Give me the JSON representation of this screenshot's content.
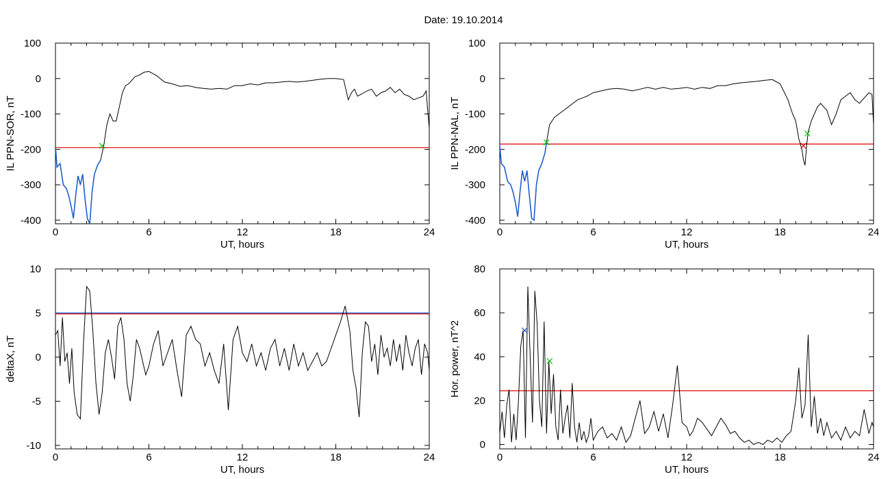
{
  "figure": {
    "title": "Date:  19.10.2014",
    "colors": {
      "trace": "#000000",
      "quiet": "#1f5fd0",
      "threshold": "#e00000",
      "onset_green": "#00c000",
      "onset_red": "#e00000",
      "mark_blue": "#2050b0"
    }
  },
  "chart_data": [
    {
      "id": "il-ppn-sor",
      "type": "line",
      "title": "",
      "xlabel": "UT, hours",
      "ylabel": "IL PPN-SOR, nT",
      "xlim": [
        0,
        24
      ],
      "ylim": [
        -410,
        100
      ],
      "xticks": [
        "0",
        "6",
        "12",
        "18",
        "24"
      ],
      "yticks": [
        "100",
        "0",
        "-100",
        "-200",
        "-300",
        "-400"
      ],
      "ytick_values": [
        100,
        0,
        -100,
        -200,
        -300,
        -400
      ],
      "threshold": -195,
      "series": [
        {
          "x": [
            0,
            0.1,
            0.3,
            0.5,
            0.7,
            0.85,
            1.0,
            1.15,
            1.3,
            1.45,
            1.6,
            1.75,
            1.9,
            2.05,
            2.2,
            2.35,
            2.5,
            2.7,
            2.9,
            3.1,
            3.3,
            3.5,
            3.7,
            3.9,
            4.1,
            4.3,
            4.5,
            4.7,
            4.9,
            5.1,
            5.4,
            5.7,
            6.0,
            6.5,
            7.0,
            7.5,
            8.0,
            8.5,
            9.0,
            9.5,
            10.0,
            10.5,
            11.0,
            11.5,
            12.0,
            12.5,
            13.0,
            13.5,
            14.0,
            14.5,
            15.0,
            15.5,
            16.0,
            16.5,
            17.0,
            17.5,
            18.0,
            18.5,
            18.8,
            19.0,
            19.2,
            19.4,
            19.6,
            19.8,
            20.0,
            20.3,
            20.6,
            20.9,
            21.2,
            21.5,
            21.8,
            22.1,
            22.4,
            22.7,
            23.0,
            23.3,
            23.6,
            23.8,
            23.9,
            24.0
          ],
          "y": [
            -190,
            -250,
            -240,
            -300,
            -310,
            -330,
            -360,
            -395,
            -330,
            -275,
            -300,
            -270,
            -340,
            -395,
            -410,
            -320,
            -270,
            -245,
            -230,
            -190,
            -130,
            -100,
            -120,
            -120,
            -80,
            -40,
            -20,
            -15,
            -5,
            5,
            10,
            18,
            20,
            8,
            -10,
            -15,
            -22,
            -20,
            -25,
            -28,
            -30,
            -28,
            -30,
            -20,
            -20,
            -15,
            -18,
            -12,
            -12,
            -10,
            -8,
            -10,
            -8,
            -5,
            -2,
            0,
            0,
            -3,
            -60,
            -40,
            -30,
            -50,
            -45,
            -40,
            -35,
            -30,
            -50,
            -40,
            -35,
            -25,
            -40,
            -30,
            -45,
            -50,
            -60,
            -55,
            -50,
            -35,
            -90,
            -140
          ]
        }
      ],
      "quiet_segment_until_x": 3.0,
      "markers": [
        {
          "x": 3.0,
          "y": -190,
          "color": "onset_green"
        }
      ]
    },
    {
      "id": "il-ppn-nal",
      "type": "line",
      "title": "",
      "xlabel": "UT, hours",
      "ylabel": "IL PPN-NAL, nT",
      "xlim": [
        0,
        24
      ],
      "ylim": [
        -410,
        100
      ],
      "xticks": [
        "0",
        "6",
        "12",
        "18",
        "24"
      ],
      "yticks": [
        "100",
        "0",
        "-100",
        "-200",
        "-300",
        "-400"
      ],
      "ytick_values": [
        100,
        0,
        -100,
        -200,
        -300,
        -400
      ],
      "threshold": -185,
      "series": [
        {
          "x": [
            0,
            0.1,
            0.3,
            0.5,
            0.7,
            0.85,
            1.0,
            1.15,
            1.3,
            1.45,
            1.6,
            1.75,
            1.9,
            2.05,
            2.2,
            2.35,
            2.5,
            2.7,
            2.9,
            3.0,
            3.2,
            3.5,
            3.8,
            4.1,
            4.4,
            4.7,
            5.0,
            5.3,
            5.6,
            6.0,
            6.5,
            7.0,
            7.5,
            8.0,
            8.5,
            9.0,
            9.5,
            10.0,
            10.5,
            11.0,
            11.5,
            12.0,
            12.5,
            13.0,
            13.5,
            14.0,
            14.5,
            15.0,
            15.5,
            16.0,
            16.5,
            17.0,
            17.5,
            18.0,
            18.5,
            18.8,
            19.0,
            19.2,
            19.4,
            19.5,
            19.6,
            19.7,
            19.8,
            20.0,
            20.2,
            20.4,
            20.6,
            20.8,
            21.0,
            21.3,
            21.6,
            21.9,
            22.2,
            22.5,
            22.8,
            23.1,
            23.4,
            23.7,
            23.9,
            24.0
          ],
          "y": [
            -190,
            -240,
            -250,
            -290,
            -300,
            -320,
            -350,
            -390,
            -320,
            -260,
            -290,
            -260,
            -330,
            -395,
            -400,
            -300,
            -260,
            -240,
            -210,
            -180,
            -130,
            -110,
            -100,
            -90,
            -80,
            -70,
            -60,
            -55,
            -50,
            -40,
            -35,
            -30,
            -28,
            -30,
            -35,
            -30,
            -25,
            -30,
            -25,
            -30,
            -28,
            -25,
            -30,
            -25,
            -28,
            -20,
            -20,
            -15,
            -12,
            -10,
            -8,
            -5,
            -3,
            -15,
            -60,
            -100,
            -120,
            -170,
            -200,
            -230,
            -245,
            -190,
            -150,
            -120,
            -100,
            -80,
            -70,
            -80,
            -90,
            -130,
            -100,
            -60,
            -50,
            -40,
            -60,
            -70,
            -55,
            -40,
            -45,
            -130
          ]
        }
      ],
      "quiet_segment_until_x": 3.0,
      "markers": [
        {
          "x": 3.0,
          "y": -180,
          "color": "onset_green"
        },
        {
          "x": 19.75,
          "y": -155,
          "color": "onset_green"
        },
        {
          "x": 19.5,
          "y": -190,
          "color": "onset_red"
        }
      ]
    },
    {
      "id": "deltax",
      "type": "line",
      "title": "",
      "xlabel": "UT, hours",
      "ylabel": "deltaX, nT",
      "xlim": [
        0,
        24
      ],
      "ylim": [
        -10.4,
        10
      ],
      "xticks": [
        "0",
        "6",
        "12",
        "18",
        "24"
      ],
      "yticks": [
        "10",
        "5",
        "0",
        "-5",
        "-10"
      ],
      "ytick_values": [
        10,
        5,
        0,
        -5,
        -10
      ],
      "threshold": 4.9,
      "threshold2": 5.0,
      "series": [
        {
          "x": [
            0,
            0.15,
            0.3,
            0.45,
            0.6,
            0.75,
            0.9,
            1.05,
            1.2,
            1.4,
            1.6,
            1.8,
            2.0,
            2.2,
            2.4,
            2.6,
            2.8,
            3.0,
            3.2,
            3.4,
            3.6,
            3.8,
            4.0,
            4.2,
            4.4,
            4.6,
            4.8,
            5.0,
            5.2,
            5.4,
            5.6,
            5.8,
            6.0,
            6.3,
            6.6,
            6.9,
            7.2,
            7.5,
            7.8,
            8.1,
            8.4,
            8.7,
            9.0,
            9.3,
            9.6,
            9.9,
            10.2,
            10.5,
            10.8,
            11.1,
            11.4,
            11.7,
            12.0,
            12.3,
            12.6,
            12.9,
            13.2,
            13.5,
            13.8,
            14.1,
            14.4,
            14.7,
            15.0,
            15.3,
            15.6,
            15.9,
            16.2,
            16.5,
            16.8,
            17.1,
            17.4,
            17.7,
            18.0,
            18.3,
            18.6,
            18.9,
            19.1,
            19.3,
            19.5,
            19.7,
            19.9,
            20.1,
            20.3,
            20.5,
            20.7,
            20.9,
            21.1,
            21.3,
            21.5,
            21.7,
            21.9,
            22.1,
            22.3,
            22.5,
            22.7,
            22.9,
            23.1,
            23.3,
            23.5,
            23.7,
            23.9,
            24.0
          ],
          "y": [
            2.5,
            3.0,
            -1.0,
            4.5,
            -0.5,
            0.5,
            -3.0,
            1.0,
            -4.0,
            -6.5,
            -7.0,
            1.5,
            8.0,
            7.5,
            3.0,
            -3.0,
            -6.5,
            -4.0,
            0.5,
            2.0,
            0.0,
            -2.5,
            3.5,
            4.5,
            2.0,
            -3.0,
            -5.0,
            -2.0,
            2.0,
            1.0,
            -0.5,
            -2.0,
            -1.0,
            1.5,
            3.0,
            -1.0,
            0.5,
            2.0,
            -1.5,
            -4.5,
            2.5,
            3.5,
            2.0,
            1.5,
            -1.0,
            0.5,
            -1.5,
            -3.0,
            1.5,
            -6.0,
            2.0,
            3.5,
            0.5,
            -0.5,
            1.5,
            -1.0,
            0.5,
            -1.5,
            1.0,
            2.0,
            -1.0,
            1.0,
            -1.5,
            1.5,
            -1.0,
            0.5,
            -1.5,
            -0.5,
            0.5,
            -1.0,
            -0.5,
            1.0,
            2.5,
            4.0,
            5.8,
            3.0,
            -1.5,
            -3.5,
            -6.8,
            0.5,
            4.0,
            3.5,
            -0.5,
            1.5,
            -2.0,
            2.5,
            0.0,
            1.0,
            -1.0,
            2.0,
            -0.5,
            1.5,
            -1.5,
            2.5,
            0.5,
            -1.0,
            1.0,
            2.0,
            -2.0,
            1.5,
            0.5,
            -1.5
          ]
        }
      ]
    },
    {
      "id": "hor-power",
      "type": "line",
      "title": "",
      "xlabel": "UT, hours",
      "ylabel": "Hor. power, nT^2",
      "xlim": [
        0,
        24
      ],
      "ylim": [
        -2,
        80
      ],
      "xticks": [
        "0",
        "6",
        "12",
        "18",
        "24"
      ],
      "yticks": [
        "80",
        "60",
        "40",
        "20",
        "0"
      ],
      "ytick_values": [
        80,
        60,
        40,
        20,
        0
      ],
      "threshold": 24.5,
      "series": [
        {
          "x": [
            0,
            0.15,
            0.3,
            0.45,
            0.6,
            0.75,
            0.9,
            1.05,
            1.2,
            1.35,
            1.5,
            1.65,
            1.8,
            1.95,
            2.1,
            2.25,
            2.4,
            2.55,
            2.7,
            2.85,
            3.0,
            3.15,
            3.3,
            3.45,
            3.6,
            3.75,
            3.9,
            4.05,
            4.2,
            4.35,
            4.5,
            4.65,
            4.8,
            4.95,
            5.1,
            5.25,
            5.4,
            5.55,
            5.7,
            5.85,
            6.0,
            6.3,
            6.6,
            6.9,
            7.2,
            7.5,
            7.8,
            8.1,
            8.4,
            8.7,
            9.0,
            9.3,
            9.6,
            9.9,
            10.2,
            10.5,
            10.8,
            11.1,
            11.4,
            11.7,
            12.0,
            12.2,
            12.4,
            12.7,
            13.0,
            13.3,
            13.6,
            13.9,
            14.2,
            14.5,
            14.8,
            15.1,
            15.4,
            15.7,
            16.0,
            16.3,
            16.6,
            16.9,
            17.2,
            17.5,
            17.8,
            18.1,
            18.4,
            18.7,
            19.0,
            19.2,
            19.4,
            19.6,
            19.8,
            20.0,
            20.2,
            20.4,
            20.6,
            20.8,
            21.0,
            21.3,
            21.6,
            21.9,
            22.2,
            22.5,
            22.8,
            23.1,
            23.4,
            23.7,
            23.9,
            24.0
          ],
          "y": [
            5,
            15,
            3,
            18,
            25,
            1,
            14,
            2,
            20,
            45,
            52,
            3,
            72,
            40,
            10,
            70,
            55,
            20,
            8,
            56,
            5,
            38,
            14,
            32,
            8,
            2,
            25,
            5,
            12,
            18,
            3,
            28,
            8,
            1,
            10,
            2,
            6,
            1,
            4,
            12,
            2,
            6,
            8,
            3,
            5,
            2,
            8,
            1,
            4,
            12,
            20,
            5,
            8,
            15,
            6,
            14,
            3,
            18,
            36,
            10,
            8,
            4,
            6,
            12,
            10,
            7,
            4,
            8,
            12,
            9,
            5,
            6,
            3,
            1,
            2,
            0,
            1,
            0,
            2,
            1,
            3,
            1,
            4,
            6,
            20,
            35,
            12,
            18,
            50,
            8,
            22,
            5,
            12,
            4,
            10,
            3,
            6,
            2,
            8,
            3,
            6,
            4,
            16,
            5,
            10,
            8
          ]
        }
      ],
      "markers": [
        {
          "x": 1.6,
          "y": 52,
          "color": "mark_blue"
        },
        {
          "x": 3.2,
          "y": 38,
          "color": "onset_green"
        }
      ]
    }
  ]
}
